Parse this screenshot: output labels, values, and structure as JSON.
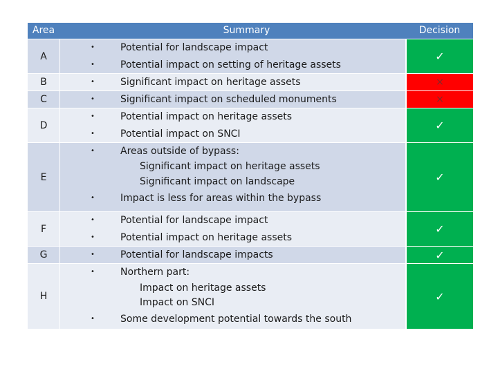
{
  "header": {
    "area": "Area",
    "summary": "Summary",
    "decision": "Decision"
  },
  "bullet_glyph": "•",
  "marks": {
    "approved": "✓",
    "rejected": "×"
  },
  "rows": [
    {
      "area": "A",
      "decision": "approved",
      "lines": [
        {
          "text": "Potential for landscape impact",
          "bullet": true
        },
        {
          "text": "Potential impact on setting of heritage assets",
          "bullet": true
        }
      ]
    },
    {
      "area": "B",
      "decision": "rejected",
      "lines": [
        {
          "text": "Significant impact on heritage assets",
          "bullet": true
        }
      ]
    },
    {
      "area": "C",
      "decision": "rejected",
      "lines": [
        {
          "text": "Significant impact on scheduled monuments",
          "bullet": true
        }
      ]
    },
    {
      "area": "D",
      "decision": "approved",
      "lines": [
        {
          "text": "Potential impact on heritage assets",
          "bullet": true
        },
        {
          "text": "Potential impact on SNCI",
          "bullet": true
        }
      ]
    },
    {
      "area": "E",
      "decision": "approved",
      "lines": [
        {
          "text": "Areas outside of bypass:",
          "bullet": true
        },
        {
          "text": "Significant impact on heritage assets",
          "bullet": false
        },
        {
          "text": "Significant impact on landscape",
          "bullet": false
        },
        {
          "text": "Impact is less for areas within the bypass",
          "bullet": true
        }
      ]
    },
    {
      "area": "F",
      "decision": "approved",
      "lines": [
        {
          "text": "Potential for landscape impact",
          "bullet": true
        },
        {
          "text": "Potential impact on heritage assets",
          "bullet": true
        }
      ]
    },
    {
      "area": "G",
      "decision": "approved",
      "lines": [
        {
          "text": "Potential for landscape impacts",
          "bullet": true
        }
      ]
    },
    {
      "area": "H",
      "decision": "approved",
      "lines": [
        {
          "text": "Northern part:",
          "bullet": true
        },
        {
          "text": "Impact on heritage assets",
          "bullet": false
        },
        {
          "text": "Impact on SNCI",
          "bullet": false
        },
        {
          "text": "Some development potential towards the south",
          "bullet": true
        }
      ]
    }
  ]
}
